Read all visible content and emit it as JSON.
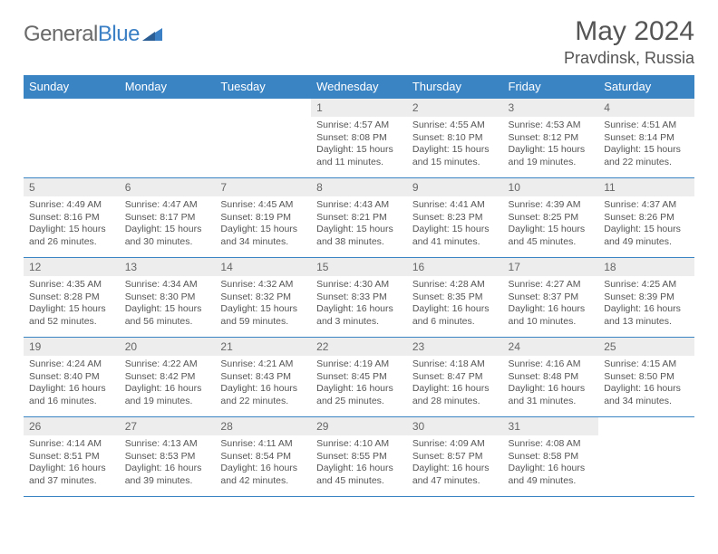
{
  "logo": {
    "word1": "General",
    "word2": "Blue"
  },
  "title": "May 2024",
  "location": "Pravdinsk, Russia",
  "colors": {
    "header_bg": "#3b84c4",
    "header_fg": "#ffffff",
    "daynum_bg": "#ededed",
    "border": "#3b84c4",
    "text": "#555555",
    "background": "#ffffff"
  },
  "fonts": {
    "title_size": 30,
    "location_size": 18,
    "dayhead_size": 13,
    "body_size": 10.5
  },
  "dayHeaders": [
    "Sunday",
    "Monday",
    "Tuesday",
    "Wednesday",
    "Thursday",
    "Friday",
    "Saturday"
  ],
  "weeks": [
    [
      null,
      null,
      null,
      {
        "n": "1",
        "sr": "4:57 AM",
        "ss": "8:08 PM",
        "dl": "15 hours and 11 minutes."
      },
      {
        "n": "2",
        "sr": "4:55 AM",
        "ss": "8:10 PM",
        "dl": "15 hours and 15 minutes."
      },
      {
        "n": "3",
        "sr": "4:53 AM",
        "ss": "8:12 PM",
        "dl": "15 hours and 19 minutes."
      },
      {
        "n": "4",
        "sr": "4:51 AM",
        "ss": "8:14 PM",
        "dl": "15 hours and 22 minutes."
      }
    ],
    [
      {
        "n": "5",
        "sr": "4:49 AM",
        "ss": "8:16 PM",
        "dl": "15 hours and 26 minutes."
      },
      {
        "n": "6",
        "sr": "4:47 AM",
        "ss": "8:17 PM",
        "dl": "15 hours and 30 minutes."
      },
      {
        "n": "7",
        "sr": "4:45 AM",
        "ss": "8:19 PM",
        "dl": "15 hours and 34 minutes."
      },
      {
        "n": "8",
        "sr": "4:43 AM",
        "ss": "8:21 PM",
        "dl": "15 hours and 38 minutes."
      },
      {
        "n": "9",
        "sr": "4:41 AM",
        "ss": "8:23 PM",
        "dl": "15 hours and 41 minutes."
      },
      {
        "n": "10",
        "sr": "4:39 AM",
        "ss": "8:25 PM",
        "dl": "15 hours and 45 minutes."
      },
      {
        "n": "11",
        "sr": "4:37 AM",
        "ss": "8:26 PM",
        "dl": "15 hours and 49 minutes."
      }
    ],
    [
      {
        "n": "12",
        "sr": "4:35 AM",
        "ss": "8:28 PM",
        "dl": "15 hours and 52 minutes."
      },
      {
        "n": "13",
        "sr": "4:34 AM",
        "ss": "8:30 PM",
        "dl": "15 hours and 56 minutes."
      },
      {
        "n": "14",
        "sr": "4:32 AM",
        "ss": "8:32 PM",
        "dl": "15 hours and 59 minutes."
      },
      {
        "n": "15",
        "sr": "4:30 AM",
        "ss": "8:33 PM",
        "dl": "16 hours and 3 minutes."
      },
      {
        "n": "16",
        "sr": "4:28 AM",
        "ss": "8:35 PM",
        "dl": "16 hours and 6 minutes."
      },
      {
        "n": "17",
        "sr": "4:27 AM",
        "ss": "8:37 PM",
        "dl": "16 hours and 10 minutes."
      },
      {
        "n": "18",
        "sr": "4:25 AM",
        "ss": "8:39 PM",
        "dl": "16 hours and 13 minutes."
      }
    ],
    [
      {
        "n": "19",
        "sr": "4:24 AM",
        "ss": "8:40 PM",
        "dl": "16 hours and 16 minutes."
      },
      {
        "n": "20",
        "sr": "4:22 AM",
        "ss": "8:42 PM",
        "dl": "16 hours and 19 minutes."
      },
      {
        "n": "21",
        "sr": "4:21 AM",
        "ss": "8:43 PM",
        "dl": "16 hours and 22 minutes."
      },
      {
        "n": "22",
        "sr": "4:19 AM",
        "ss": "8:45 PM",
        "dl": "16 hours and 25 minutes."
      },
      {
        "n": "23",
        "sr": "4:18 AM",
        "ss": "8:47 PM",
        "dl": "16 hours and 28 minutes."
      },
      {
        "n": "24",
        "sr": "4:16 AM",
        "ss": "8:48 PM",
        "dl": "16 hours and 31 minutes."
      },
      {
        "n": "25",
        "sr": "4:15 AM",
        "ss": "8:50 PM",
        "dl": "16 hours and 34 minutes."
      }
    ],
    [
      {
        "n": "26",
        "sr": "4:14 AM",
        "ss": "8:51 PM",
        "dl": "16 hours and 37 minutes."
      },
      {
        "n": "27",
        "sr": "4:13 AM",
        "ss": "8:53 PM",
        "dl": "16 hours and 39 minutes."
      },
      {
        "n": "28",
        "sr": "4:11 AM",
        "ss": "8:54 PM",
        "dl": "16 hours and 42 minutes."
      },
      {
        "n": "29",
        "sr": "4:10 AM",
        "ss": "8:55 PM",
        "dl": "16 hours and 45 minutes."
      },
      {
        "n": "30",
        "sr": "4:09 AM",
        "ss": "8:57 PM",
        "dl": "16 hours and 47 minutes."
      },
      {
        "n": "31",
        "sr": "4:08 AM",
        "ss": "8:58 PM",
        "dl": "16 hours and 49 minutes."
      },
      null
    ]
  ],
  "labels": {
    "sunrise": "Sunrise:",
    "sunset": "Sunset:",
    "daylight": "Daylight:"
  }
}
